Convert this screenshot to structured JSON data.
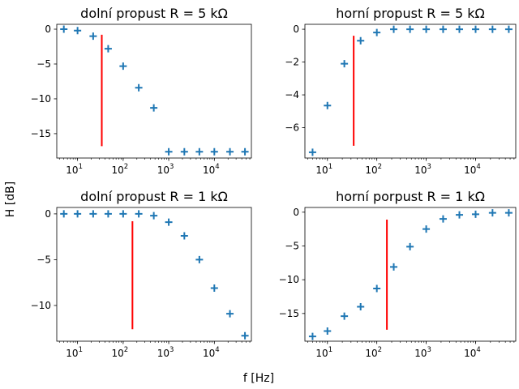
{
  "figure": {
    "xlabel": "f [Hz]",
    "ylabel": "H [dB]"
  },
  "chart_data": [
    {
      "type": "scatter",
      "title": "dolní propust R = 5 kΩ",
      "xscale": "log",
      "xlim": [
        3.5,
        65000
      ],
      "ylim": [
        -18.5,
        0.7
      ],
      "yticks": [
        0,
        -5,
        -10,
        -15
      ],
      "xticks": [
        10,
        100,
        1000,
        10000
      ],
      "marker": "+",
      "marker_color": "#1f77b4",
      "x": [
        5,
        10,
        22,
        47,
        100,
        220,
        470,
        1000,
        2200,
        4700,
        10000,
        22000,
        47000
      ],
      "y": [
        0,
        -0.2,
        -1.0,
        -2.8,
        -5.3,
        -8.4,
        -11.3,
        -17.6,
        -17.6,
        -17.6,
        -17.6,
        -17.6,
        -17.6
      ],
      "vline": {
        "x": 34,
        "ymin": -16.8,
        "ymax": -0.8,
        "color": "#ff0000"
      }
    },
    {
      "type": "scatter",
      "title": "horní propust R = 5 kΩ",
      "xscale": "log",
      "xlim": [
        3.5,
        65000
      ],
      "ylim": [
        -7.85,
        0.3
      ],
      "yticks": [
        0,
        -2,
        -4,
        -6
      ],
      "xticks": [
        10,
        100,
        1000,
        10000
      ],
      "marker": "+",
      "marker_color": "#1f77b4",
      "x": [
        5,
        10,
        22,
        47,
        100,
        220,
        470,
        1000,
        2200,
        4700,
        10000,
        22000,
        47000
      ],
      "y": [
        -7.5,
        -4.65,
        -2.1,
        -0.7,
        -0.2,
        0,
        0,
        0,
        0,
        0,
        0,
        0,
        0
      ],
      "vline": {
        "x": 34,
        "ymin": -7.1,
        "ymax": -0.4,
        "color": "#ff0000"
      }
    },
    {
      "type": "scatter",
      "title": "dolní propust R = 1 kΩ",
      "xscale": "log",
      "xlim": [
        3.5,
        65000
      ],
      "ylim": [
        -13.9,
        0.7
      ],
      "yticks": [
        0,
        -5,
        -10
      ],
      "xticks": [
        10,
        100,
        1000,
        10000
      ],
      "marker": "+",
      "marker_color": "#1f77b4",
      "x": [
        5,
        10,
        22,
        47,
        100,
        220,
        470,
        1000,
        2200,
        4700,
        10000,
        22000,
        47000
      ],
      "y": [
        0,
        0,
        0,
        0,
        0,
        0,
        -0.2,
        -0.9,
        -2.4,
        -5.0,
        -8.1,
        -10.9,
        -13.3
      ],
      "vline": {
        "x": 160,
        "ymin": -12.6,
        "ymax": -0.8,
        "color": "#ff0000"
      }
    },
    {
      "type": "scatter",
      "title": "horní porpust R = 1 kΩ",
      "xscale": "log",
      "xlim": [
        3.5,
        65000
      ],
      "ylim": [
        -19.1,
        0.7
      ],
      "yticks": [
        0,
        -5,
        -10,
        -15
      ],
      "xticks": [
        10,
        100,
        1000,
        10000
      ],
      "marker": "+",
      "marker_color": "#1f77b4",
      "x": [
        5,
        10,
        22,
        47,
        100,
        220,
        470,
        1000,
        2200,
        4700,
        10000,
        22000,
        47000
      ],
      "y": [
        -18.4,
        -17.6,
        -15.4,
        -14.0,
        -11.3,
        -8.1,
        -5.1,
        -2.5,
        -1.0,
        -0.4,
        -0.3,
        -0.1,
        -0.1
      ],
      "vline": {
        "x": 160,
        "ymin": -17.4,
        "ymax": -1.1,
        "color": "#ff0000"
      }
    }
  ]
}
